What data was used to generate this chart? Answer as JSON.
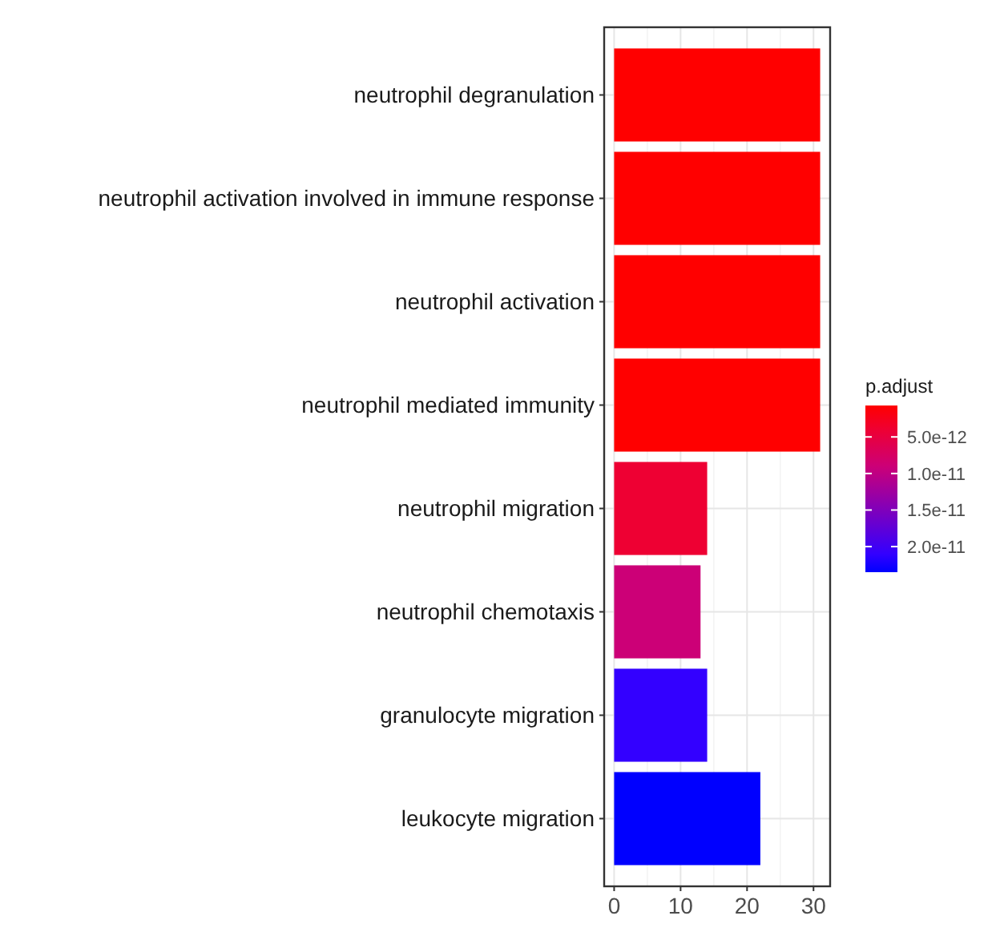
{
  "chart_data": {
    "type": "bar",
    "orientation": "horizontal",
    "categories": [
      "neutrophil degranulation",
      "neutrophil activation involved in immune response",
      "neutrophil activation",
      "neutrophil mediated immunity",
      "neutrophil migration",
      "neutrophil chemotaxis",
      "granulocyte migration",
      "leukocyte migration"
    ],
    "values": [
      31,
      31,
      31,
      31,
      14,
      13,
      14,
      22
    ],
    "cvalues": [
      7e-13,
      7e-13,
      7e-13,
      7e-13,
      4e-12,
      9e-12,
      2.1e-11,
      2.35e-11
    ],
    "colors": [
      "#ff0000",
      "#ff0000",
      "#ff0000",
      "#ff0000",
      "#ee0033",
      "#cc0077",
      "#3300ff",
      "#0000ff"
    ],
    "xlim": [
      -1.5,
      32.5
    ],
    "xticks": [
      0,
      10,
      20,
      30
    ],
    "grid": true,
    "clabel": "p.adjust",
    "clim": [
      7e-13,
      2.35e-11
    ],
    "cticks": [
      {
        "value": 5e-12,
        "label": "5.0e-12"
      },
      {
        "value": 1e-11,
        "label": "1.0e-11"
      },
      {
        "value": 1.5e-11,
        "label": "1.5e-11"
      },
      {
        "value": 2e-11,
        "label": "2.0e-11"
      }
    ]
  }
}
